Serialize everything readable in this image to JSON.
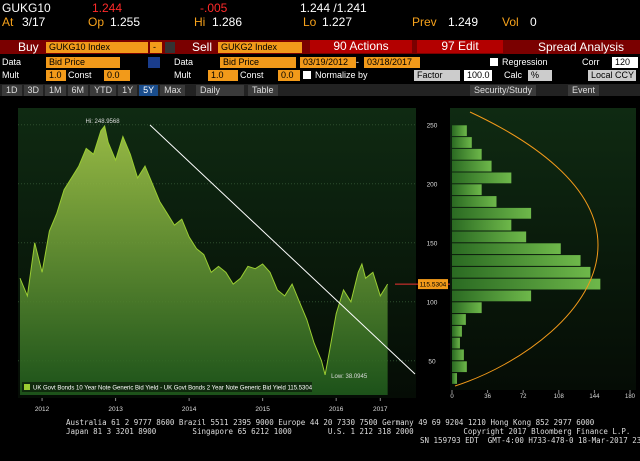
{
  "quote": {
    "ticker": "GUKG10",
    "last": "1.244",
    "change": "-.005",
    "bid_ask": "1.244 /1.241",
    "at_label": "At",
    "at": "3/17",
    "op_label": "Op",
    "op": "1.255",
    "hi_label": "Hi",
    "hi": "1.286",
    "lo_label": "Lo",
    "lo": "1.227",
    "prev_label": "Prev",
    "prev": "1.249",
    "vol_label": "Vol",
    "vol": "0"
  },
  "toolbar": {
    "buy": "Buy",
    "buy_security": "GUKG10 Index",
    "dash": "-",
    "sell": "Sell",
    "sell_security": "GUKG2 Index",
    "actions": "90 Actions",
    "edit": "97 Edit",
    "spread": "Spread Analysis"
  },
  "settings": {
    "data_label": "Data",
    "data1": "Bid Price",
    "data2": "Bid Price",
    "start": "03/19/2012",
    "dash": "-",
    "end": "03/18/2017",
    "regression": "Regression",
    "corr": "Corr",
    "corr_value": "120",
    "mult_label": "Mult",
    "mult1": "1.0",
    "const_label": "Const",
    "const1": "0.0",
    "mult2": "1.0",
    "const2": "0.0",
    "normalize": "Normalize by",
    "factor": "Factor",
    "factor_value": "100.0",
    "calc": "Calc",
    "calc_value": "%",
    "ccy": "Local CCY"
  },
  "tabs": {
    "ranges": [
      "1D",
      "3D",
      "1M",
      "6M",
      "YTD",
      "1Y",
      "5Y",
      "Max"
    ],
    "period": "Daily",
    "table": "Table",
    "security_study": "Security/Study",
    "event": "Event"
  },
  "chart_data": [
    {
      "type": "area",
      "x": [
        2012.2,
        2012.3,
        2012.4,
        2012.5,
        2012.6,
        2012.7,
        2012.8,
        2012.9,
        2013.0,
        2013.1,
        2013.2,
        2013.3,
        2013.35,
        2013.4,
        2013.5,
        2013.6,
        2013.7,
        2013.8,
        2013.9,
        2014.0,
        2014.1,
        2014.2,
        2014.3,
        2014.4,
        2014.5,
        2014.6,
        2014.7,
        2014.8,
        2014.9,
        2015.0,
        2015.1,
        2015.2,
        2015.3,
        2015.4,
        2015.5,
        2015.6,
        2015.7,
        2015.8,
        2015.9,
        2016.0,
        2016.1,
        2016.2,
        2016.3,
        2016.35,
        2016.4,
        2016.5,
        2016.6,
        2016.7,
        2016.8,
        2016.85,
        2016.9,
        2017.0,
        2017.1,
        2017.2
      ],
      "values": [
        120,
        105,
        150,
        125,
        160,
        175,
        195,
        205,
        215,
        230,
        225,
        245,
        249,
        235,
        220,
        240,
        225,
        205,
        215,
        200,
        185,
        175,
        165,
        170,
        155,
        145,
        140,
        125,
        130,
        125,
        115,
        120,
        130,
        128,
        132,
        125,
        110,
        105,
        115,
        100,
        85,
        65,
        50,
        38,
        55,
        90,
        110,
        100,
        125,
        132,
        120,
        125,
        105,
        115
      ],
      "color": "#9acd32",
      "xlim": [
        2012.2,
        2017.3
      ],
      "ylim": [
        21,
        260
      ],
      "yticks": [
        50,
        100,
        150,
        200,
        250
      ],
      "xticks": [
        {
          "value": 2012.5,
          "label": "2012"
        },
        {
          "value": 2013.5,
          "label": "2013"
        },
        {
          "value": 2014.5,
          "label": "2014"
        },
        {
          "value": 2015.5,
          "label": "2015"
        },
        {
          "value": 2016.5,
          "label": "2016"
        },
        {
          "value": 2017.1,
          "label": "2017"
        }
      ],
      "grid": true,
      "high_label": "Hi: 248.9568",
      "low_label": "Low: 38.0945",
      "last_label": "115.5304",
      "legend": "UK Govt Bonds 10 Year Note Generic Bid Yield - UK Govt Bonds 2 Year Note Generic Bid Yield 115.5304"
    },
    {
      "type": "histogram",
      "bins": [
        30,
        40,
        50,
        60,
        70,
        80,
        90,
        100,
        110,
        120,
        130,
        140,
        150,
        160,
        170,
        180,
        190,
        200,
        210,
        220,
        230,
        240,
        250
      ],
      "values": [
        5,
        15,
        12,
        8,
        10,
        14,
        30,
        80,
        150,
        140,
        130,
        110,
        75,
        60,
        80,
        45,
        30,
        60,
        40,
        30,
        20,
        15
      ],
      "color": "#4f9a3a",
      "xlim": [
        0,
        180
      ],
      "xticks": [
        0,
        36,
        72,
        108,
        144,
        180
      ]
    }
  ],
  "footer": [
    "Australia 61 2 9777 8600 Brazil 5511 2395 9000 Europe 44 20 7330 7500 Germany 49 69 9204 1210 Hong Kong 852 2977 6000",
    "Japan 81 3 3201 8900        Singapore 65 6212 1000        U.S. 1 212 318 2000           Copyright 2017 Bloomberg Finance L.P.",
    "SN 159793 EDT  GMT-4:00 H733-478-0 18-Mar-2017 23:41:20"
  ]
}
